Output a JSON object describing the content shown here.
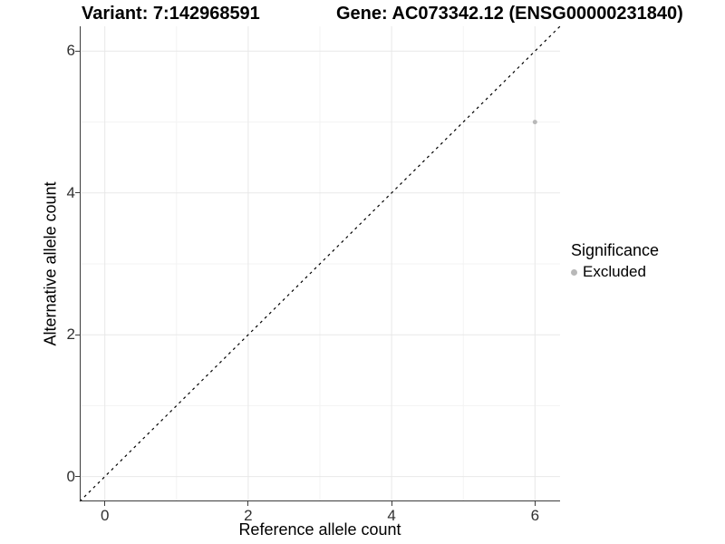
{
  "header": {
    "variant_title": "Variant: 7:142968591",
    "gene_title": "Gene: AC073342.12 (ENSG00000231840)"
  },
  "chart_data": {
    "type": "scatter",
    "title_left": "Variant: 7:142968591",
    "title_right": "Gene: AC073342.12 (ENSG00000231840)",
    "xlabel": "Reference allele count",
    "ylabel": "Alternative allele count",
    "xlim": [
      -0.35,
      6.35
    ],
    "ylim": [
      -0.35,
      6.35
    ],
    "x_ticks": [
      0,
      2,
      4,
      6
    ],
    "y_ticks": [
      0,
      2,
      4,
      6
    ],
    "x_minor_ticks": [
      1,
      3,
      5
    ],
    "y_minor_ticks": [
      1,
      3,
      5
    ],
    "grid": true,
    "points": [
      {
        "x": 6,
        "y": 5,
        "series": "Excluded"
      }
    ],
    "reference_line": {
      "slope": 1,
      "intercept": 0,
      "style": "dashed",
      "color": "#000000"
    },
    "legend": {
      "title": "Significance",
      "position": "right",
      "entries": [
        {
          "label": "Excluded",
          "color": "#b8b8b8",
          "marker": "circle"
        }
      ]
    },
    "colors": {
      "point": "#b8b8b8",
      "grid_major": "#e8e8e8",
      "grid_minor": "#f3f3f3",
      "axis_line": "#3c3c3c",
      "tick_label": "#303030",
      "background": "#ffffff"
    },
    "point_radius_px": 2.5
  }
}
